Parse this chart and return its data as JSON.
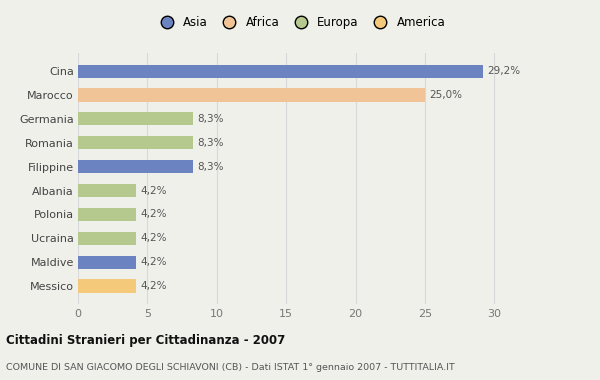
{
  "categories": [
    "Messico",
    "Maldive",
    "Ucraina",
    "Polonia",
    "Albania",
    "Filippine",
    "Romania",
    "Germania",
    "Marocco",
    "Cina"
  ],
  "values": [
    4.2,
    4.2,
    4.2,
    4.2,
    4.2,
    8.3,
    8.3,
    8.3,
    25.0,
    29.2
  ],
  "labels": [
    "4,2%",
    "4,2%",
    "4,2%",
    "4,2%",
    "4,2%",
    "8,3%",
    "8,3%",
    "8,3%",
    "25,0%",
    "29,2%"
  ],
  "colors": [
    "#f5c97a",
    "#6b83c0",
    "#b5c98e",
    "#b5c98e",
    "#b5c98e",
    "#6b83c0",
    "#b5c98e",
    "#b5c98e",
    "#f0c497",
    "#6b83c0"
  ],
  "legend_labels": [
    "Asia",
    "Africa",
    "Europa",
    "America"
  ],
  "legend_colors": [
    "#6b83c0",
    "#f0c497",
    "#b5c98e",
    "#f5c97a"
  ],
  "title": "Cittadini Stranieri per Cittadinanza - 2007",
  "subtitle": "COMUNE DI SAN GIACOMO DEGLI SCHIAVONI (CB) - Dati ISTAT 1° gennaio 2007 - TUTTITALIA.IT",
  "xlim": [
    0,
    32
  ],
  "xticks": [
    0,
    5,
    10,
    15,
    20,
    25,
    30
  ],
  "background_color": "#f0f0eb",
  "bar_background": "#f0f0eb"
}
